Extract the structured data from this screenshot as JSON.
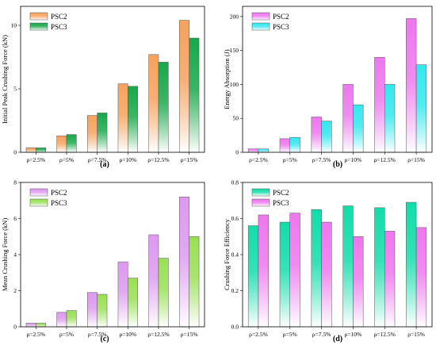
{
  "chart_data": [
    {
      "type": "bar",
      "panel": "(a)",
      "categories": [
        "ρ=2.5%",
        "ρ=5%",
        "ρ=7.5%",
        "ρ=10%",
        "ρ=12.5%",
        "ρ=15%"
      ],
      "series": [
        {
          "name": "PSC2",
          "values": [
            0.35,
            1.3,
            2.9,
            5.4,
            7.7,
            10.4
          ],
          "color": "#f7a15c"
        },
        {
          "name": "PSC3",
          "values": [
            0.35,
            1.4,
            3.1,
            5.2,
            7.1,
            9.0
          ],
          "color": "#18a84a"
        }
      ],
      "ylabel": "Initial Peak Crushing Force (kN)",
      "ylim": [
        0,
        11.5
      ],
      "yticks": [
        0,
        5,
        10
      ],
      "legend": "top-left"
    },
    {
      "type": "bar",
      "panel": "(b)",
      "categories": [
        "ρ=2.5%",
        "ρ=5%",
        "ρ=7.5%",
        "ρ=10%",
        "ρ=12.5%",
        "ρ=15%"
      ],
      "series": [
        {
          "name": "PSC2",
          "values": [
            5,
            20,
            52,
            100,
            140,
            197
          ],
          "color": "#ee77ee"
        },
        {
          "name": "PSC3",
          "values": [
            5,
            22,
            46,
            70,
            100,
            129
          ],
          "color": "#33e8ee"
        }
      ],
      "ylabel": "Energy Absorption (J)",
      "ylim": [
        0,
        215
      ],
      "yticks": [
        0,
        50,
        100,
        150,
        200
      ],
      "legend": "top-left"
    },
    {
      "type": "bar",
      "panel": "(c)",
      "categories": [
        "ρ=2.5%",
        "ρ=5%",
        "ρ=7.5%",
        "ρ=10%",
        "ρ=12.5%",
        "ρ=15%"
      ],
      "series": [
        {
          "name": "PSC2",
          "values": [
            0.2,
            0.8,
            1.9,
            3.6,
            5.1,
            7.2
          ],
          "color": "#dd99f0"
        },
        {
          "name": "PSC3",
          "values": [
            0.2,
            0.9,
            1.8,
            2.7,
            3.8,
            5.0
          ],
          "color": "#99e055"
        }
      ],
      "ylabel": "Mean Crushing Force (kN)",
      "ylim": [
        0,
        8
      ],
      "yticks": [
        0,
        2,
        4,
        6,
        8
      ],
      "legend": "top-left"
    },
    {
      "type": "bar",
      "panel": "(d)",
      "categories": [
        "ρ=2.5%",
        "ρ=5%",
        "ρ=7.5%",
        "ρ=10%",
        "ρ=12.5%",
        "ρ=15%"
      ],
      "series": [
        {
          "name": "PSC2",
          "values": [
            0.56,
            0.58,
            0.65,
            0.67,
            0.66,
            0.69
          ],
          "color": "#11ddaa"
        },
        {
          "name": "PSC3",
          "values": [
            0.62,
            0.63,
            0.58,
            0.5,
            0.53,
            0.55
          ],
          "color": "#ee77ee"
        }
      ],
      "ylabel": "Crushing Force Efficiency",
      "ylim": [
        0,
        0.8
      ],
      "yticks": [
        0.0,
        0.2,
        0.4,
        0.6,
        0.8
      ],
      "legend": "top-left"
    }
  ]
}
